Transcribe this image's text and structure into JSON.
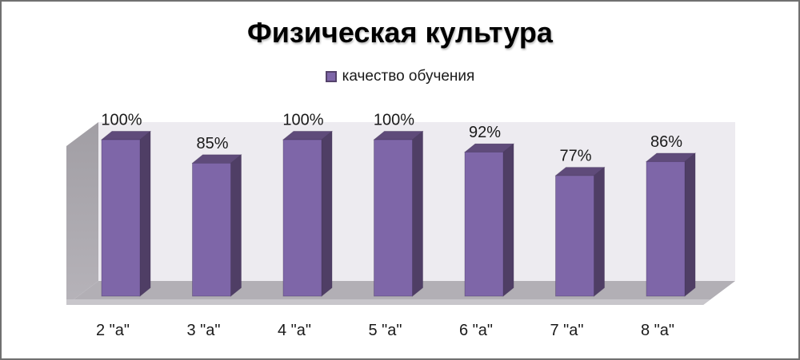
{
  "title": "Физическая культура",
  "legend": {
    "label": "качество обучения"
  },
  "colors": {
    "bar_front": "#7E66A8",
    "bar_side": "#4F3E65",
    "bar_top": "#5F4B7A",
    "bar_outline": "#44345A",
    "back_wall": "#EDEBF0",
    "side_wall_top": "#A19EA4",
    "side_wall_bottom": "#B6B3B9",
    "floor": "#B2AFB5",
    "floor_edge": "#C8C6CB",
    "frame_border": "#707070",
    "label_text": "#1A1A1A",
    "legend_swatch_border": "#54426B"
  },
  "chart_data": {
    "type": "bar",
    "style": "3d-clustered-column",
    "title": "Физическая культура",
    "categories": [
      "2 \"а\"",
      "3 \"а\"",
      "4 \"а\"",
      "5 \"а\"",
      "6 \"а\"",
      "7 \"а\"",
      "8 \"а\""
    ],
    "series": [
      {
        "name": "качество обучения",
        "values": [
          100,
          85,
          100,
          100,
          92,
          77,
          86
        ],
        "labels": [
          "100%",
          "85%",
          "100%",
          "100%",
          "92%",
          "77%",
          "86%"
        ]
      }
    ],
    "ylim": [
      0,
      100
    ],
    "grid": false,
    "legend_position": "top",
    "value_label_suffix": "%"
  }
}
